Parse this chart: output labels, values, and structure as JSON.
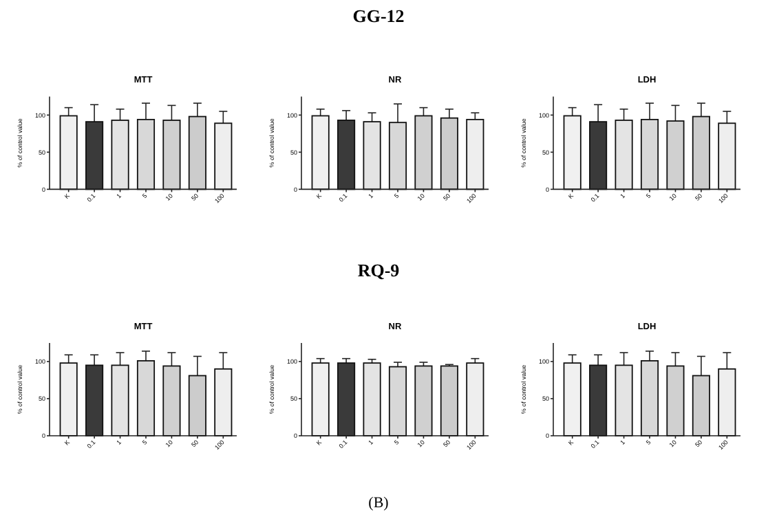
{
  "chart_data": [
    {
      "type": "other",
      "title": "GG-12"
    },
    {
      "type": "bar",
      "title": "MTT",
      "ylabel": "% of control value",
      "categories": [
        "K",
        "0.1",
        "1",
        "5",
        "10",
        "50",
        "100"
      ],
      "values": [
        99,
        91,
        93,
        94,
        93,
        98,
        89
      ],
      "errors": [
        11,
        23,
        15,
        22,
        20,
        18,
        16
      ],
      "colors": [
        "#f0f0f0",
        "#3a3a3a",
        "#e4e4e4",
        "#d8d8d8",
        "#d0d0d0",
        "#cccccc",
        "#eeeeee"
      ],
      "ylim": [
        0,
        125
      ],
      "yticks": [
        0,
        50,
        100
      ]
    },
    {
      "type": "bar",
      "title": "NR",
      "ylabel": "% of control value",
      "categories": [
        "K",
        "0.1",
        "1",
        "5",
        "10",
        "50",
        "100"
      ],
      "values": [
        99,
        93,
        91,
        90,
        99,
        96,
        94
      ],
      "errors": [
        9,
        13,
        12,
        25,
        11,
        12,
        9
      ],
      "colors": [
        "#f0f0f0",
        "#3a3a3a",
        "#e4e4e4",
        "#d8d8d8",
        "#d0d0d0",
        "#cccccc",
        "#eeeeee"
      ],
      "ylim": [
        0,
        125
      ],
      "yticks": [
        0,
        50,
        100
      ]
    },
    {
      "type": "bar",
      "title": "LDH",
      "ylabel": "% of control value",
      "categories": [
        "K",
        "0.1",
        "1",
        "5",
        "10",
        "50",
        "100"
      ],
      "values": [
        99,
        91,
        93,
        94,
        92,
        98,
        89
      ],
      "errors": [
        11,
        23,
        15,
        22,
        21,
        18,
        16
      ],
      "colors": [
        "#f0f0f0",
        "#3a3a3a",
        "#e4e4e4",
        "#d8d8d8",
        "#d0d0d0",
        "#cccccc",
        "#eeeeee"
      ],
      "ylim": [
        0,
        125
      ],
      "yticks": [
        0,
        50,
        100
      ]
    },
    {
      "type": "other",
      "title": "RQ-9"
    },
    {
      "type": "bar",
      "title": "MTT",
      "ylabel": "% of control value",
      "categories": [
        "K",
        "0.1",
        "1",
        "5",
        "10",
        "50",
        "100"
      ],
      "values": [
        98,
        95,
        95,
        101,
        94,
        81,
        90
      ],
      "errors": [
        11,
        14,
        17,
        13,
        18,
        26,
        22
      ],
      "colors": [
        "#f0f0f0",
        "#3a3a3a",
        "#e4e4e4",
        "#d8d8d8",
        "#d0d0d0",
        "#cccccc",
        "#eeeeee"
      ],
      "ylim": [
        0,
        125
      ],
      "yticks": [
        0,
        50,
        100
      ]
    },
    {
      "type": "bar",
      "title": "NR",
      "ylabel": "% of control value",
      "categories": [
        "K",
        "0.1",
        "1",
        "5",
        "10",
        "50",
        "100"
      ],
      "values": [
        98,
        98,
        98,
        93,
        94,
        94,
        98
      ],
      "errors": [
        6,
        6,
        5,
        6,
        5,
        2,
        6
      ],
      "colors": [
        "#f0f0f0",
        "#3a3a3a",
        "#e4e4e4",
        "#d8d8d8",
        "#d0d0d0",
        "#cccccc",
        "#eeeeee"
      ],
      "ylim": [
        0,
        125
      ],
      "yticks": [
        0,
        50,
        100
      ]
    },
    {
      "type": "bar",
      "title": "LDH",
      "ylabel": "% of control value",
      "categories": [
        "K",
        "0.1",
        "1",
        "5",
        "10",
        "50",
        "100"
      ],
      "values": [
        98,
        95,
        95,
        101,
        94,
        81,
        90
      ],
      "errors": [
        11,
        14,
        17,
        13,
        18,
        26,
        22
      ],
      "colors": [
        "#f0f0f0",
        "#3a3a3a",
        "#e4e4e4",
        "#d8d8d8",
        "#d0d0d0",
        "#cccccc",
        "#eeeeee"
      ],
      "ylim": [
        0,
        125
      ],
      "yticks": [
        0,
        50,
        100
      ]
    },
    {
      "type": "other",
      "annotations": [
        "(B)"
      ]
    }
  ]
}
